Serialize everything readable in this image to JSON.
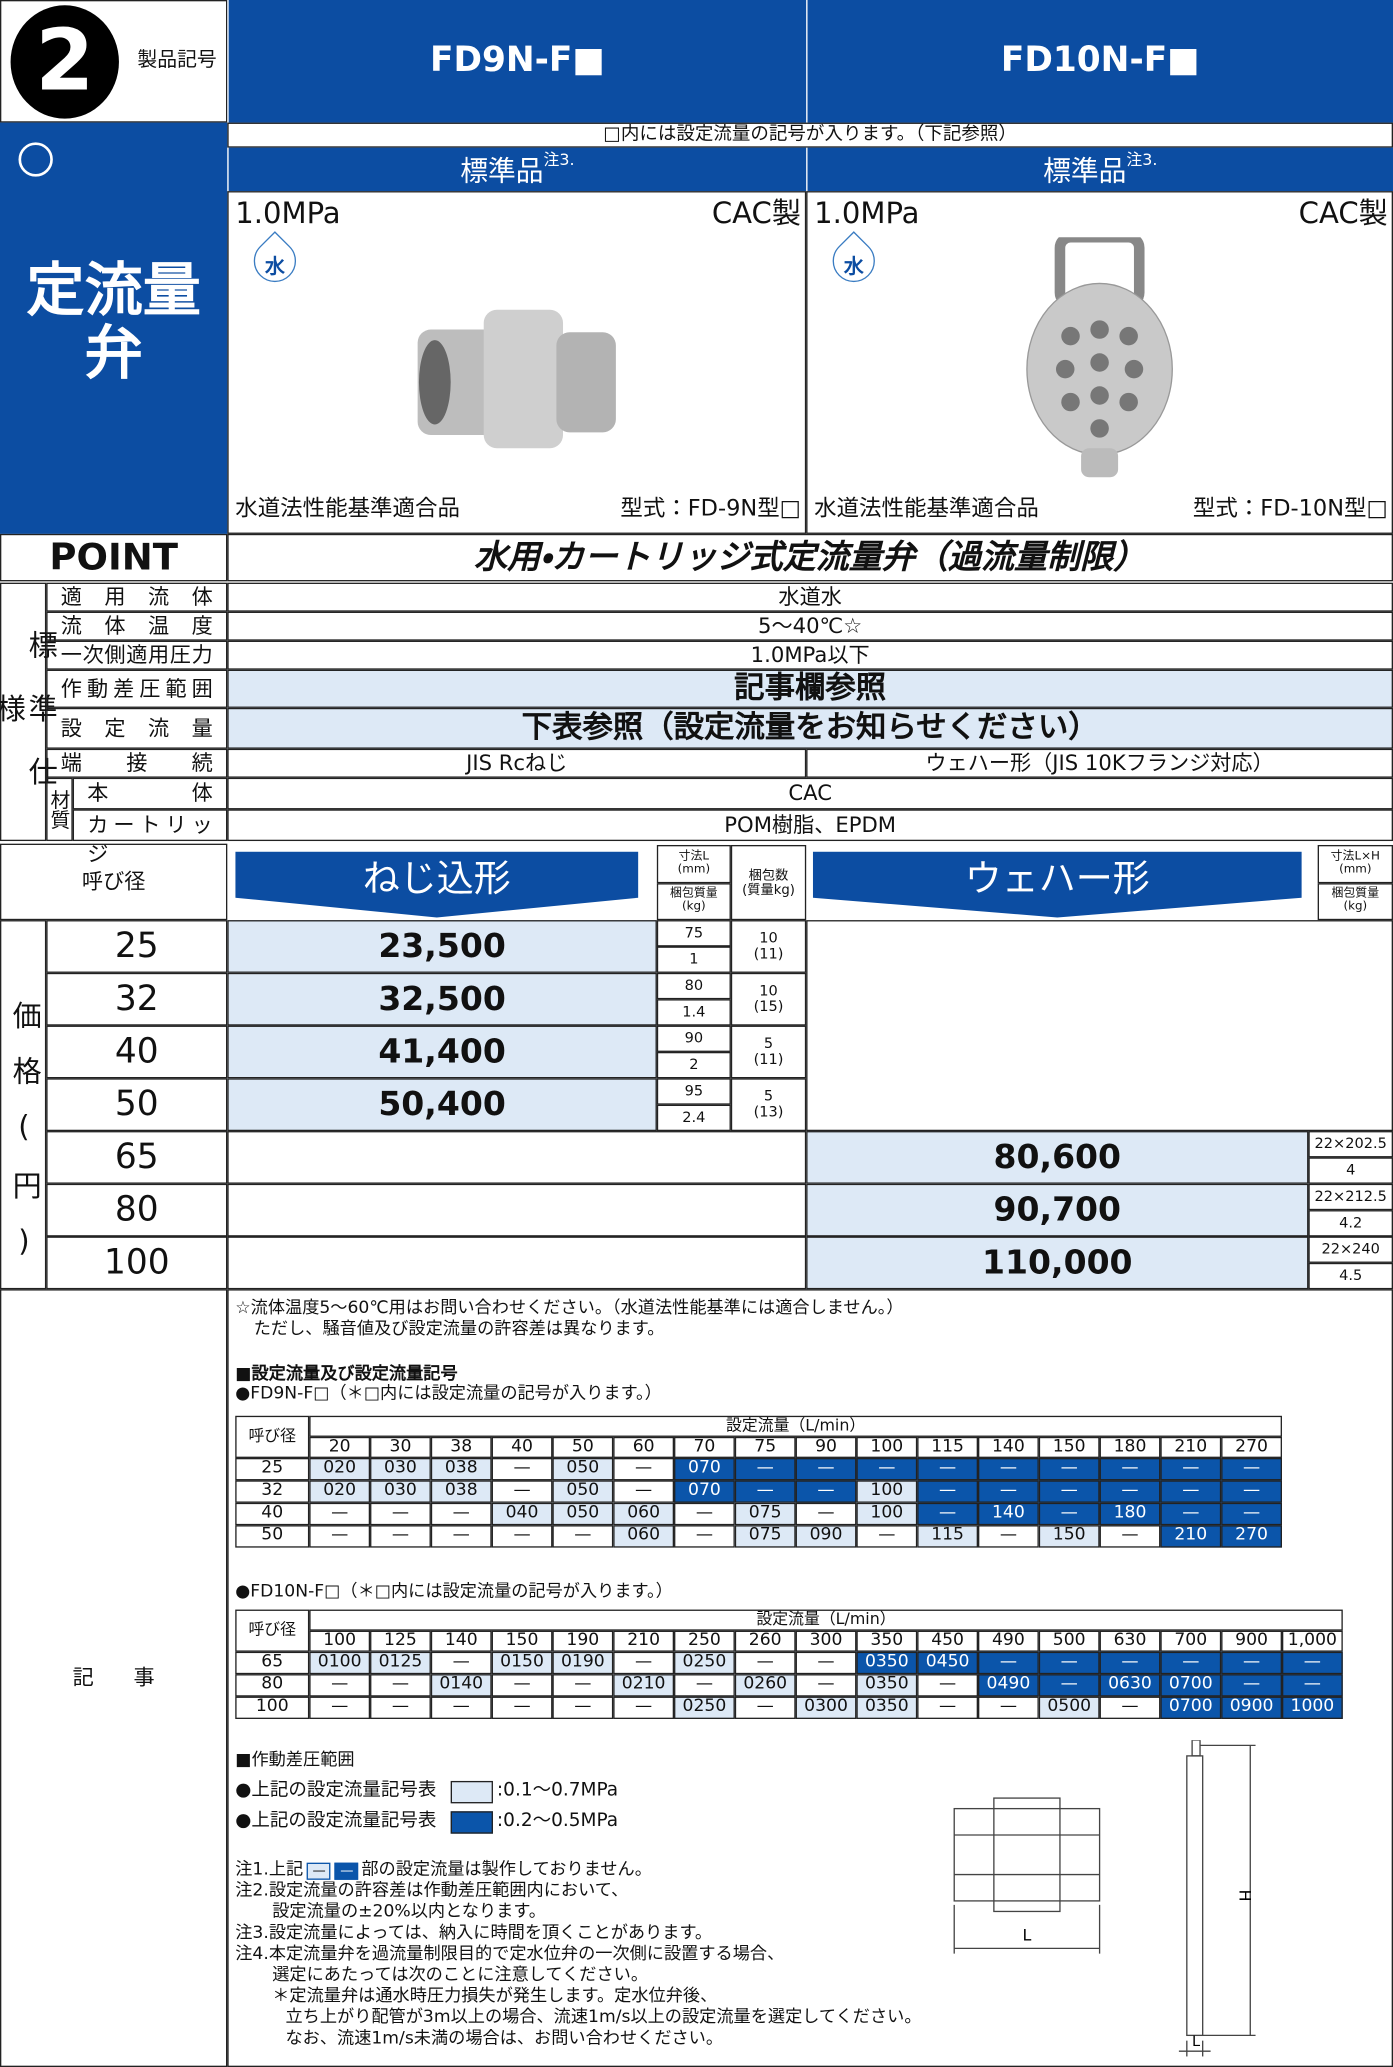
{
  "header": {
    "badge": "2",
    "label": "製品記号",
    "category": "定流量弁",
    "models": [
      "FD9N-F■",
      "FD10N-F■"
    ]
  },
  "note_top": "□内には設定流量の記号が入ります。（下記参照）",
  "products": [
    {
      "grade": "標準品",
      "grade_note": "注3.",
      "pressure": "1.0MPa",
      "material": "CAC製",
      "fluid_icon": "水",
      "compliance": "水道法性能基準適合品",
      "model_type": "型式：FD-9N型□"
    },
    {
      "grade": "標準品",
      "grade_note": "注3.",
      "pressure": "1.0MPa",
      "material": "CAC製",
      "fluid_icon": "水",
      "compliance": "水道法性能基準適合品",
      "model_type": "型式：FD-10N型□"
    }
  ],
  "point": {
    "label": "POINT",
    "text": "水用・カートリッジ式定流量弁（過流量制限）"
  },
  "specs": {
    "group_label": "標準仕様",
    "material_group": "材質",
    "rows": [
      {
        "label": "適用流体",
        "value": "水道水"
      },
      {
        "label": "流体温度",
        "value": "5～40℃☆"
      },
      {
        "label": "一次側適用圧力",
        "value": "1.0MPa以下"
      },
      {
        "label": "作動差圧範囲",
        "value": "記事欄参照"
      },
      {
        "label": "設定流量",
        "value": "下表参照（設定流量をお知らせください）"
      },
      {
        "label": "端接続",
        "values": [
          "JIS Rcねじ",
          "ウェハー形（JIS 10Kフランジ対応）"
        ]
      },
      {
        "label": "本体",
        "value": "CAC"
      },
      {
        "label": "カートリッジ",
        "value": "POM樹脂、EPDM"
      }
    ]
  },
  "prices": {
    "size_label": "呼び径",
    "group_label": "価格(円)",
    "types": [
      "ねじ込形",
      "ウェハー形"
    ],
    "threaded_headers": [
      "寸法L\n(mm)",
      "梱包質量\n(kg)",
      "梱包数\n(質量kg)"
    ],
    "wafer_headers": [
      "寸法L×H\n(mm)",
      "梱包質量\n(kg)"
    ],
    "threaded": [
      {
        "size": 25,
        "price": "23,500",
        "length": 75,
        "mass": 1,
        "pack": 10,
        "pack_mass": "(11)"
      },
      {
        "size": 32,
        "price": "32,500",
        "length": 80,
        "mass": 1.4,
        "pack": 10,
        "pack_mass": "(15)"
      },
      {
        "size": 40,
        "price": "41,400",
        "length": 90,
        "mass": 2,
        "pack": 5,
        "pack_mass": "(11)"
      },
      {
        "size": 50,
        "price": "50,400",
        "length": 95,
        "mass": 2.4,
        "pack": 5,
        "pack_mass": "(13)"
      }
    ],
    "wafer": [
      {
        "size": 65,
        "price": "80,600",
        "dims": "22×202.5",
        "mass": 4
      },
      {
        "size": 80,
        "price": "90,700",
        "dims": "22×212.5",
        "mass": 4.2
      },
      {
        "size": 100,
        "price": "110,000",
        "dims": "22×240",
        "mass": 4.5
      }
    ]
  },
  "notes": {
    "label": "記事",
    "star": [
      "☆流体温度5～60℃用はお問い合わせください。（水道法性能基準には適合しません。）",
      "ただし、騒音値及び設定流量の許容差は異なります。"
    ],
    "section1": "■設定流量及び設定流量記号",
    "tables": [
      {
        "title": "●FD9N-F□（＊□内には設定流量の記号が入ります。）",
        "size_label": "呼び径",
        "flow_label": "設定流量（L/min）",
        "flows": [
          20,
          30,
          38,
          40,
          50,
          60,
          70,
          75,
          90,
          100,
          115,
          140,
          150,
          180,
          210,
          270
        ],
        "rows": [
          {
            "size": 25,
            "cells": [
              "020",
              "030",
              "038",
              "—",
              "050",
              "—",
              "070",
              "—",
              "—",
              "—",
              "—",
              "—",
              "—",
              "—",
              "—",
              "—"
            ],
            "dark": [
              6,
              7,
              8,
              9,
              10,
              11,
              12,
              13,
              14,
              15
            ]
          },
          {
            "size": 32,
            "cells": [
              "020",
              "030",
              "038",
              "—",
              "050",
              "—",
              "070",
              "—",
              "—",
              "100",
              "—",
              "—",
              "—",
              "—",
              "—",
              "—"
            ],
            "dark": [
              6,
              7,
              8,
              10,
              11,
              12,
              13,
              14,
              15
            ]
          },
          {
            "size": 40,
            "cells": [
              "—",
              "—",
              "—",
              "040",
              "050",
              "060",
              "—",
              "075",
              "—",
              "100",
              "—",
              "140",
              "—",
              "180",
              "—",
              "—"
            ],
            "dark": [
              10,
              11,
              12,
              13,
              14,
              15
            ]
          },
          {
            "size": 50,
            "cells": [
              "—",
              "—",
              "—",
              "—",
              "—",
              "060",
              "—",
              "075",
              "090",
              "—",
              "115",
              "—",
              "150",
              "—",
              "210",
              "270"
            ],
            "dark": [
              14,
              15
            ]
          }
        ]
      },
      {
        "title": "●FD10N-F□（＊□内には設定流量の記号が入ります。）",
        "size_label": "呼び径",
        "flow_label": "設定流量（L/min）",
        "flows": [
          100,
          125,
          140,
          150,
          190,
          210,
          250,
          260,
          300,
          350,
          450,
          490,
          500,
          630,
          700,
          900,
          "1,000"
        ],
        "rows": [
          {
            "size": 65,
            "cells": [
              "0100",
              "0125",
              "—",
              "0150",
              "0190",
              "—",
              "0250",
              "—",
              "—",
              "0350",
              "0450",
              "—",
              "—",
              "—",
              "—",
              "—",
              "—"
            ],
            "dark": [
              9,
              10,
              11,
              12,
              13,
              14,
              15,
              16
            ]
          },
          {
            "size": 80,
            "cells": [
              "—",
              "—",
              "0140",
              "—",
              "—",
              "0210",
              "—",
              "0260",
              "—",
              "0350",
              "—",
              "0490",
              "—",
              "0630",
              "0700",
              "—",
              "—"
            ],
            "dark": [
              11,
              12,
              13,
              14,
              15,
              16
            ]
          },
          {
            "size": 100,
            "cells": [
              "—",
              "—",
              "—",
              "—",
              "—",
              "—",
              "0250",
              "—",
              "0300",
              "0350",
              "—",
              "—",
              "0500",
              "—",
              "0700",
              "0900",
              "1000"
            ],
            "dark": [
              14,
              15,
              16
            ]
          }
        ]
      }
    ],
    "section2": "■作動差圧範囲",
    "legend": [
      {
        "text": "●上記の設定流量記号表",
        "range": ":0.1～0.7MPa"
      },
      {
        "text": "●上記の設定流量記号表",
        "range": ":0.2～0.5MPa"
      }
    ],
    "note1": {
      "pre": "注1.上記",
      "mark": "—",
      "post": "部の設定流量は製作しておりません。"
    },
    "lines": [
      "注2.設定流量の許容差は作動差圧範囲内において、",
      "設定流量の±20%以内となります。",
      "注3.設定流量によっては、納入に時間を頂くことがあります。",
      "注4.本定流量弁を過流量制限目的で定水位弁の一次側に設置する場合、",
      "選定にあたっては次のことに注意してください。",
      "＊定流量弁は通水時圧力損失が発生します。定水位弁後、",
      "立ち上がり配管が3m以上の場合、流速1m/s以上の設定流量を選定してください。",
      "なお、流速1m/s未満の場合は、お問い合わせください。"
    ],
    "diagram": {
      "width_label": "L",
      "height_label": "H",
      "thickness_label": "L"
    }
  }
}
